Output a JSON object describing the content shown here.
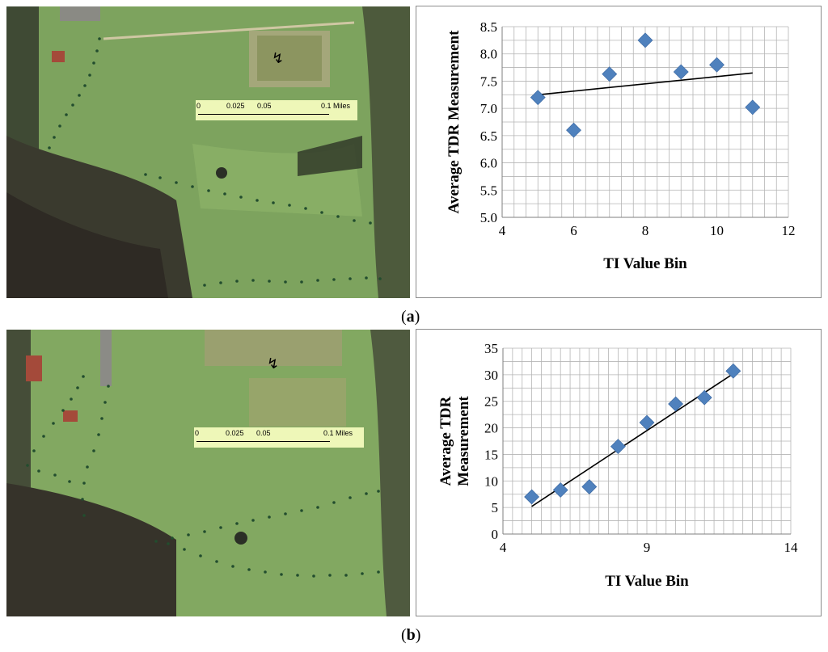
{
  "panels": [
    {
      "label": "a",
      "map": {
        "scale_bar": {
          "ticks": [
            "0",
            "0.025",
            "0.05",
            "0.1 Miles"
          ]
        },
        "north_arrow": "north-arrow-icon"
      },
      "chart_data": {
        "type": "scatter",
        "xlabel": "TI Value Bin",
        "ylabel": "Average TDR Measurement",
        "xlim": [
          4,
          12
        ],
        "ylim": [
          5.0,
          8.5
        ],
        "x_ticks": [
          "4",
          "6",
          "8",
          "10",
          "12"
        ],
        "y_ticks": [
          "5.0",
          "5.5",
          "6.0",
          "6.5",
          "7.0",
          "7.5",
          "8.0",
          "8.5"
        ],
        "points": [
          {
            "x": 5,
            "y": 7.2
          },
          {
            "x": 6,
            "y": 6.6
          },
          {
            "x": 7,
            "y": 7.63
          },
          {
            "x": 8,
            "y": 8.25
          },
          {
            "x": 9,
            "y": 7.67
          },
          {
            "x": 10,
            "y": 7.8
          },
          {
            "x": 11,
            "y": 7.02
          }
        ],
        "trendline": [
          [
            5,
            7.25
          ],
          [
            11,
            7.65
          ]
        ],
        "grid": true,
        "marker_color": "#4f81bd"
      }
    },
    {
      "label": "b",
      "map": {
        "scale_bar": {
          "ticks": [
            "0",
            "0.025",
            "0.05",
            "0.1 Miles"
          ]
        },
        "north_arrow": "north-arrow-icon"
      },
      "chart_data": {
        "type": "scatter",
        "xlabel": "TI Value Bin",
        "ylabel": "Average TDR Measurement",
        "xlim": [
          4,
          14
        ],
        "ylim": [
          0,
          35
        ],
        "x_ticks": [
          "4",
          "9",
          "14"
        ],
        "y_ticks": [
          "0",
          "5",
          "10",
          "15",
          "20",
          "25",
          "30",
          "35"
        ],
        "points": [
          {
            "x": 5,
            "y": 7.0
          },
          {
            "x": 6,
            "y": 8.3
          },
          {
            "x": 7,
            "y": 8.9
          },
          {
            "x": 8,
            "y": 16.5
          },
          {
            "x": 9,
            "y": 21.0
          },
          {
            "x": 10,
            "y": 24.5
          },
          {
            "x": 11,
            "y": 25.7
          },
          {
            "x": 12,
            "y": 30.7
          }
        ],
        "trendline": [
          [
            5,
            5.2
          ],
          [
            12,
            30.2
          ]
        ],
        "grid": true,
        "marker_color": "#4f81bd"
      }
    }
  ]
}
